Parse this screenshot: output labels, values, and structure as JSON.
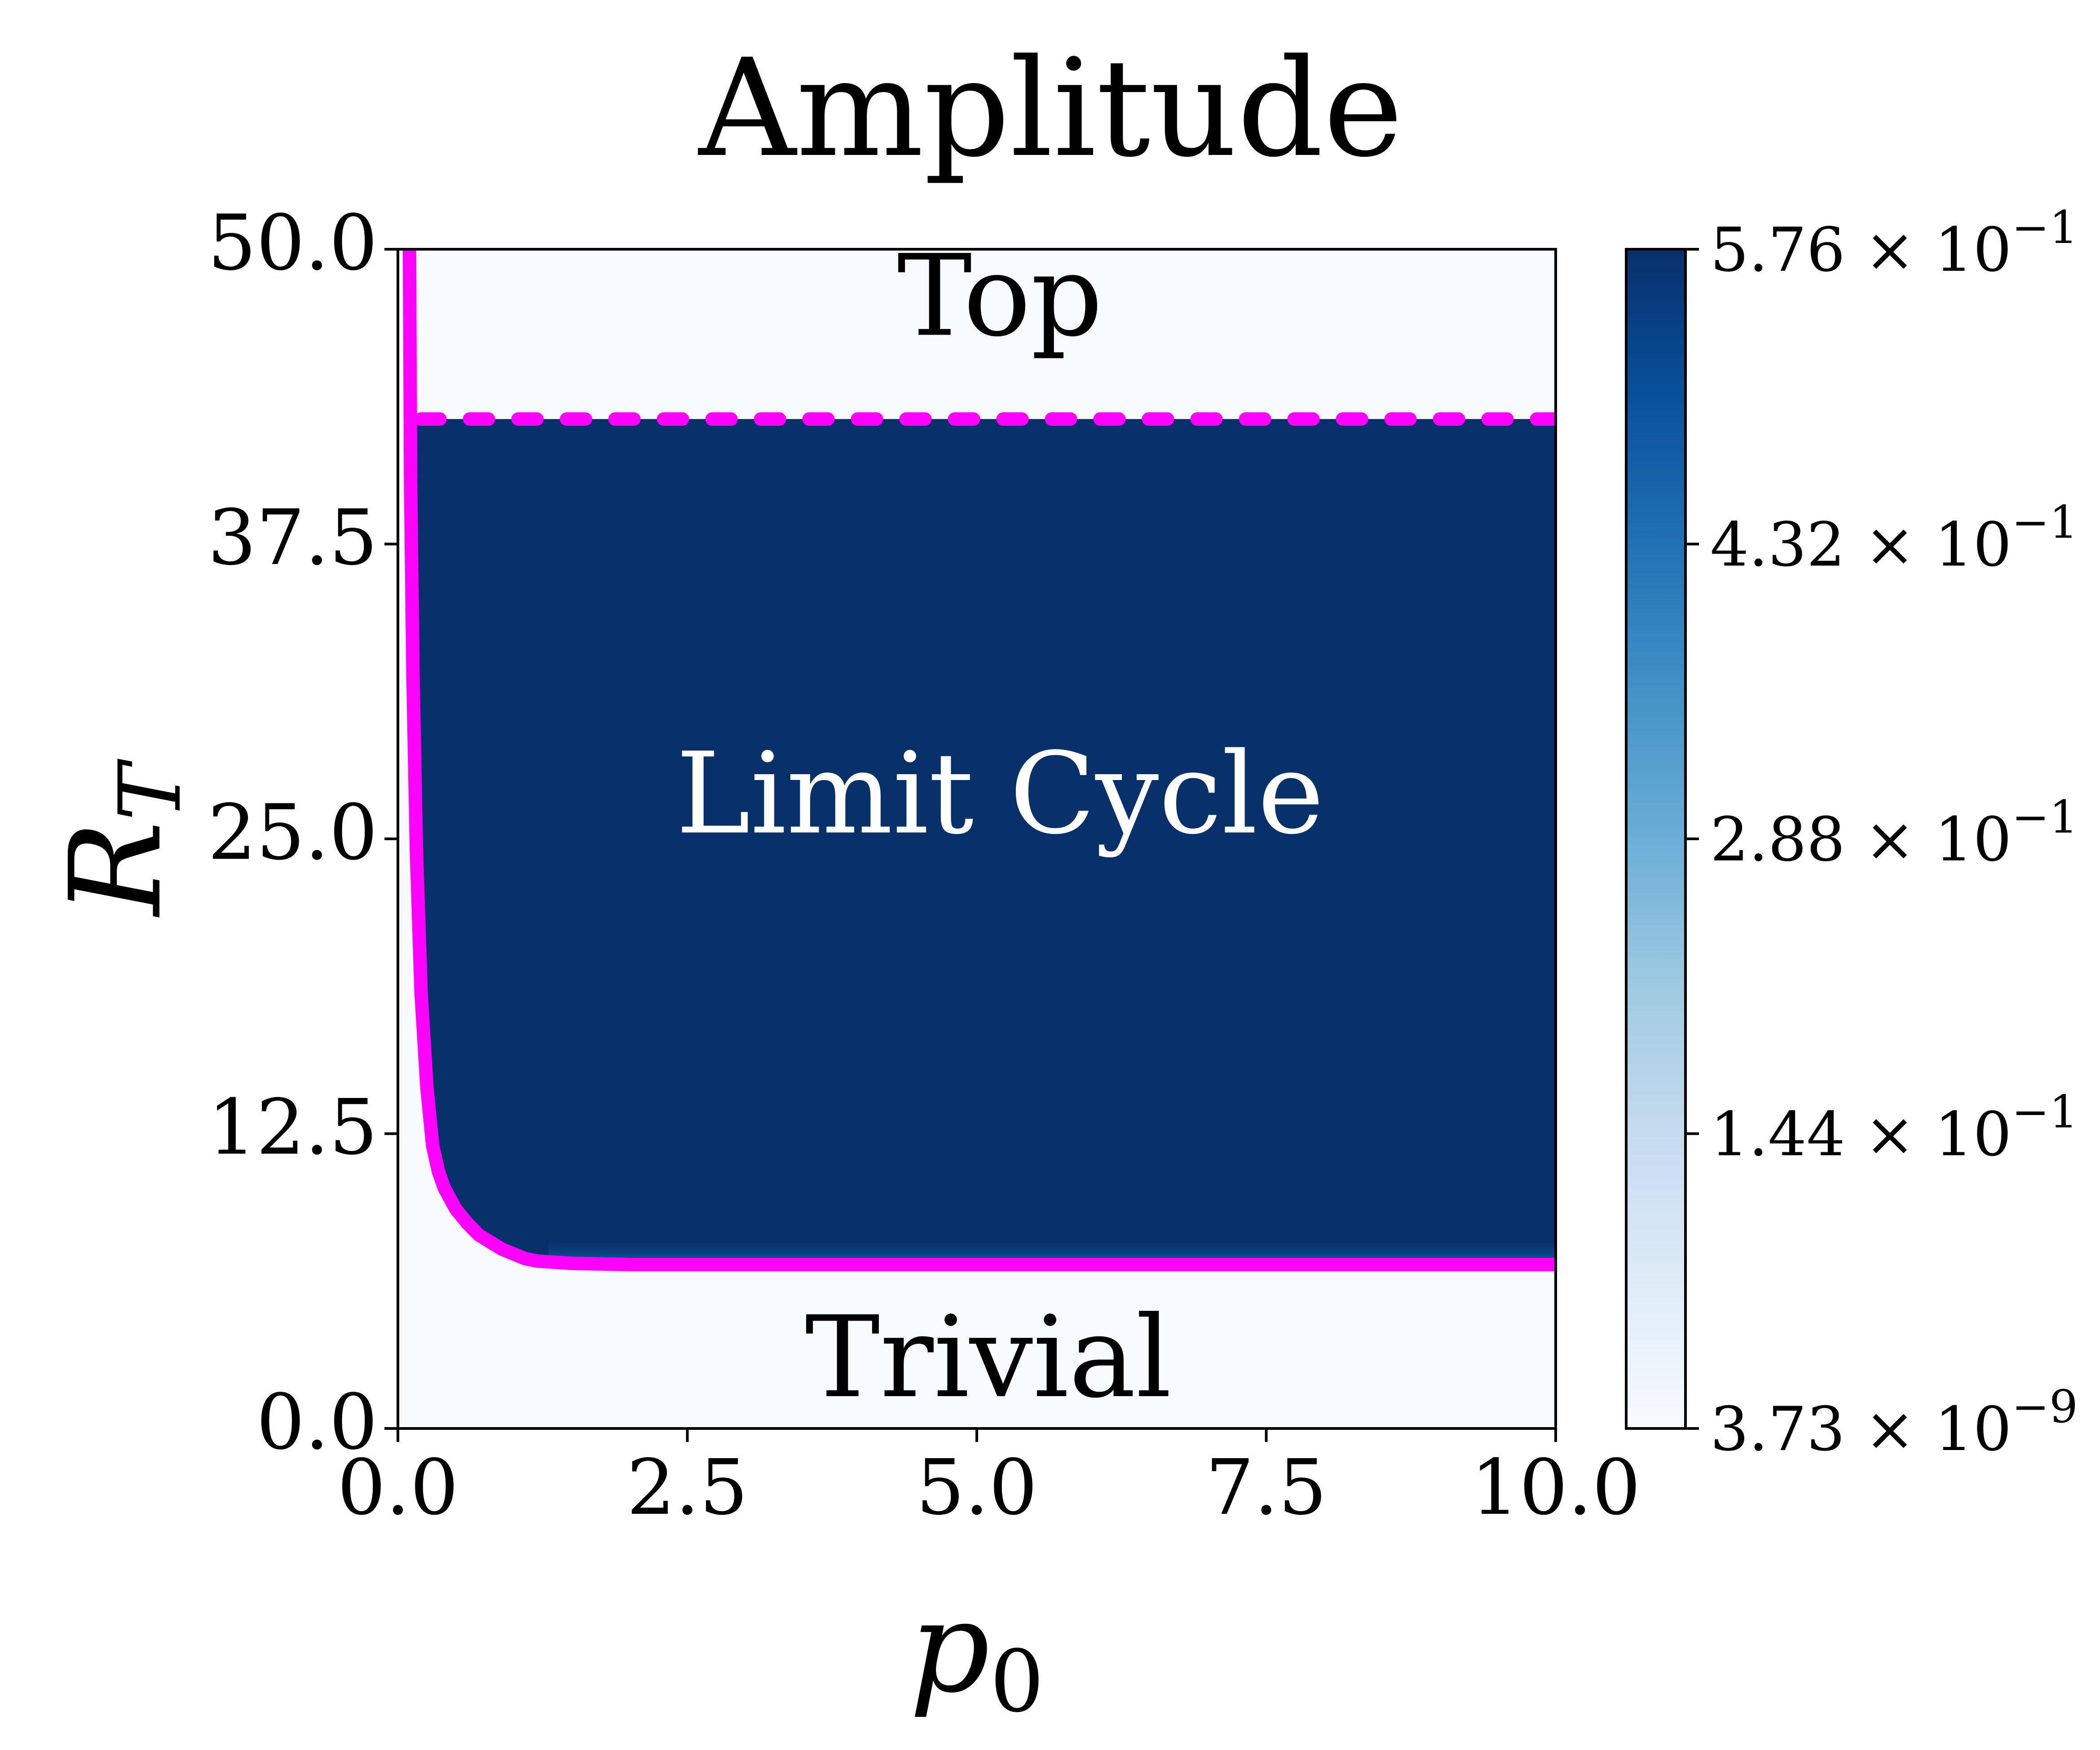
{
  "chart_data": {
    "type": "heatmap",
    "title": "Amplitude",
    "xlabel": "p",
    "xlabel_sub": "0",
    "ylabel": "R",
    "ylabel_sub": "T",
    "xlim": [
      0,
      10
    ],
    "ylim": [
      0,
      50
    ],
    "x_ticks": [
      "0.0",
      "2.5",
      "5.0",
      "7.5",
      "10.0"
    ],
    "y_ticks": [
      "0.0",
      "12.5",
      "25.0",
      "37.5",
      "50.0"
    ],
    "colorbar": {
      "colormap": "Blues",
      "scale": "log",
      "min": 3.73e-09,
      "max": 0.576,
      "tick_labels": [
        {
          "mantissa": "3.73",
          "base": "× 10",
          "exp": "−9",
          "value": 3.73e-09
        },
        {
          "mantissa": "1.44",
          "base": "× 10",
          "exp": "−1",
          "value": 0.144
        },
        {
          "mantissa": "2.88",
          "base": "× 10",
          "exp": "−1",
          "value": 0.288
        },
        {
          "mantissa": "4.32",
          "base": "× 10",
          "exp": "−1",
          "value": 0.432
        },
        {
          "mantissa": "5.76",
          "base": "× 10",
          "exp": "−1",
          "value": 0.576
        }
      ]
    },
    "regions": [
      {
        "label": "Top",
        "x": 5.2,
        "y": 47.6,
        "color": "#000000"
      },
      {
        "label": "Limit Cycle",
        "x": 5.2,
        "y": 26.5,
        "color": "#ffffff"
      },
      {
        "label": "Trivial",
        "x": 5.1,
        "y": 2.6,
        "color": "#000000"
      }
    ],
    "limit_cycle_region": {
      "color": "#08306b",
      "y_top": 42.8
    },
    "background_color": "#f7fbff",
    "boundaries": [
      {
        "style": "solid",
        "color": "#ff00ff",
        "x": [
          0.1,
          0.11,
          0.13,
          0.16,
          0.2,
          0.25,
          0.3,
          0.35,
          0.4,
          0.5,
          0.6,
          0.7,
          0.8,
          0.9,
          1.0,
          1.1,
          1.2,
          1.5,
          2.0,
          3.0,
          5.0,
          7.5,
          10.0
        ],
        "y": [
          50.0,
          40.0,
          32.0,
          24.5,
          18.5,
          14.5,
          12.0,
          10.9,
          10.2,
          9.3,
          8.7,
          8.2,
          7.9,
          7.6,
          7.4,
          7.2,
          7.1,
          7.0,
          6.95,
          6.95,
          6.95,
          6.95,
          6.95
        ]
      },
      {
        "style": "dashed",
        "color": "#ff00ff",
        "x": [
          0.2,
          10.0
        ],
        "y": [
          42.8,
          42.8
        ]
      }
    ]
  }
}
